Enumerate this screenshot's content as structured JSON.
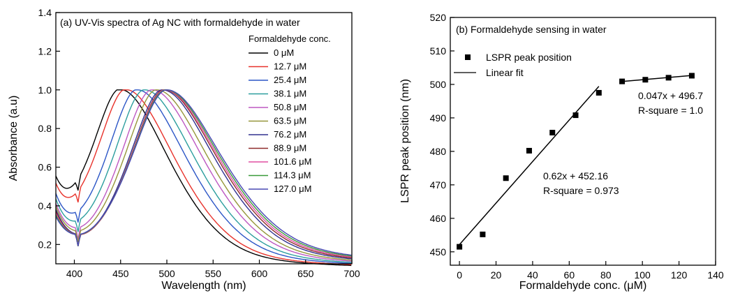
{
  "chart_data": [
    {
      "type": "line",
      "title": "(a) UV-Vis spectra of Ag NC with formaldehyde in water",
      "xlabel": "Wavelength (nm)",
      "ylabel": "Absorbance (a.u)",
      "xlim": [
        380,
        700
      ],
      "ylim": [
        0.1,
        1.4
      ],
      "xticks": [
        "400",
        "450",
        "500",
        "550",
        "600",
        "650",
        "700"
      ],
      "yticks": [
        "0.2",
        "0.4",
        "0.6",
        "0.8",
        "1.0",
        "1.2",
        "1.4"
      ],
      "legend_title": "Formaldehyde conc.",
      "legend_placement": "top-right",
      "grid": false,
      "series": [
        {
          "name": "0 μM",
          "color": "#000000",
          "peak": 450
        },
        {
          "name": "12.7 μM",
          "color": "#e8322b",
          "peak": 456
        },
        {
          "name": "25.4 μM",
          "color": "#2c56c6",
          "peak": 468
        },
        {
          "name": "38.1 μM",
          "color": "#2c9e9e",
          "peak": 476
        },
        {
          "name": "50.8 μM",
          "color": "#bd58c2",
          "peak": 484
        },
        {
          "name": "63.5 μM",
          "color": "#96963a",
          "peak": 489
        },
        {
          "name": "76.2 μM",
          "color": "#32328f",
          "peak": 495
        },
        {
          "name": "88.9 μM",
          "color": "#8e2a2a",
          "peak": 497
        },
        {
          "name": "101.6 μM",
          "color": "#e04ea0",
          "peak": 498
        },
        {
          "name": "114.3 μM",
          "color": "#3a9a3a",
          "peak": 499
        },
        {
          "name": "127.0 μM",
          "color": "#4848b4",
          "peak": 500
        }
      ]
    },
    {
      "type": "scatter",
      "title": "(b) Formaldehyde sensing in water",
      "xlabel": "Formaldehyde conc. (μM)",
      "ylabel": "LSPR peak position (nm)",
      "xlim": [
        -5,
        140
      ],
      "ylim": [
        446,
        520
      ],
      "xticks": [
        "0",
        "20",
        "40",
        "60",
        "80",
        "100",
        "120",
        "140"
      ],
      "yticks": [
        "450",
        "460",
        "470",
        "480",
        "490",
        "500",
        "510",
        "520"
      ],
      "legend_placement": "top-left",
      "grid": false,
      "series": [
        {
          "name": "LSPR peak position",
          "x": [
            0,
            12.7,
            25.4,
            38.1,
            50.8,
            63.5,
            76.2,
            88.9,
            101.6,
            114.3,
            127.0
          ],
          "y": [
            451.5,
            455.2,
            472.0,
            480.2,
            485.6,
            490.8,
            497.5,
            500.9,
            501.4,
            502.0,
            502.6
          ]
        }
      ],
      "fits": [
        {
          "name": "Linear fit",
          "x": [
            0,
            76.2
          ],
          "equation": "0.62x + 452.16",
          "r_square": "R-square = 0.973",
          "slope": 0.62,
          "intercept": 452.16
        },
        {
          "x": [
            88.9,
            127.0
          ],
          "equation": "0.047x + 496.7",
          "r_square": "R-square = 1.0",
          "slope": 0.047,
          "intercept": 496.7
        }
      ]
    }
  ]
}
